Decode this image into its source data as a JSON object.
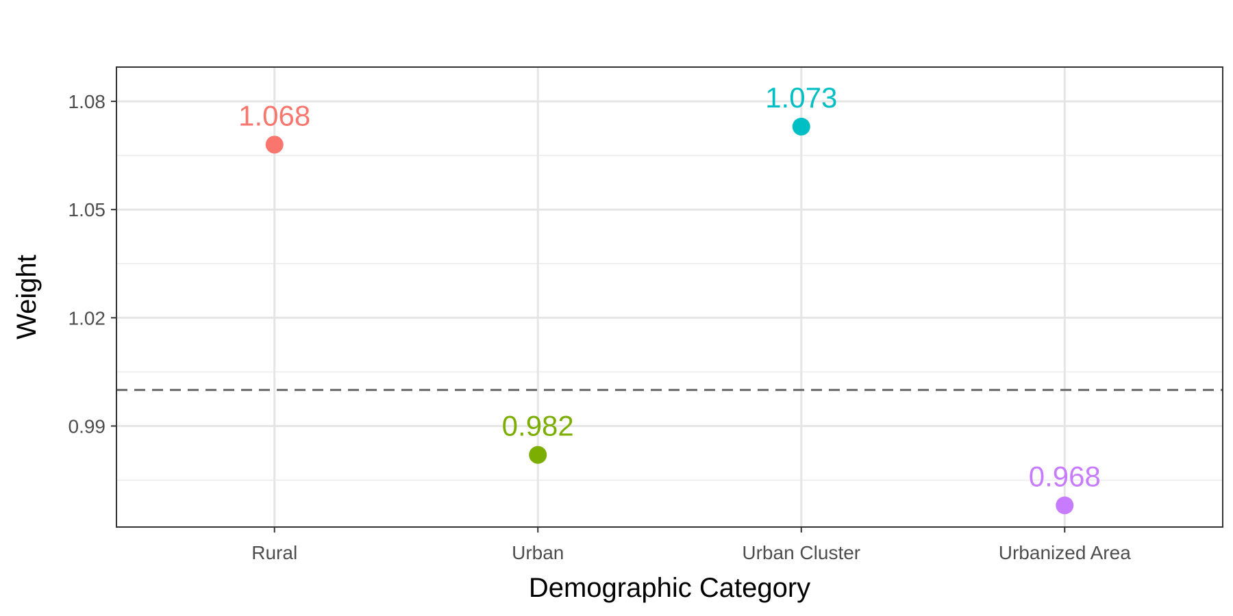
{
  "chart_data": {
    "type": "scatter",
    "categories": [
      "Rural",
      "Urban",
      "Urban Cluster",
      "Urbanized Area"
    ],
    "values": [
      1.068,
      0.982,
      1.073,
      0.968
    ],
    "value_labels": [
      "1.068",
      "0.982",
      "1.073",
      "0.968"
    ],
    "colors": [
      "#F8766D",
      "#7CAE00",
      "#00BFC4",
      "#C77CFF"
    ],
    "xlabel": "Demographic Category",
    "ylabel": "Weight",
    "ylim": [
      0.962,
      1.0895
    ],
    "yticks": [
      0.99,
      1.02,
      1.05,
      1.08
    ],
    "ytick_labels": [
      "0.99",
      "1.02",
      "1.05",
      "1.08"
    ],
    "reference_line": {
      "y": 1.0,
      "style": "dashed",
      "color": "#666666"
    },
    "grid": true,
    "legend": "none"
  }
}
